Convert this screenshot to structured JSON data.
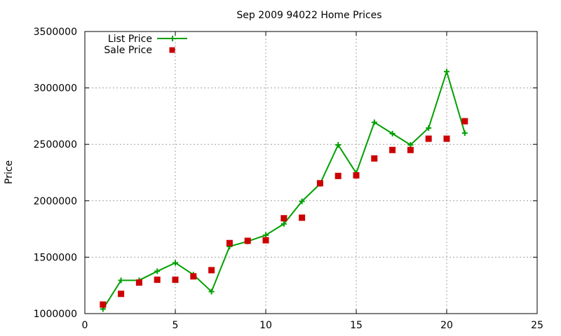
{
  "chart_data": {
    "type": "line",
    "title": "Sep 2009 94022 Home Prices",
    "xlabel": "",
    "ylabel": "Price",
    "xlim": [
      0,
      25
    ],
    "ylim": [
      1000000,
      3500000
    ],
    "xticks": [
      0,
      5,
      10,
      15,
      20,
      25
    ],
    "yticks": [
      1000000,
      1500000,
      2000000,
      2500000,
      3000000,
      3500000
    ],
    "xtick_labels": [
      "0",
      "5",
      "10",
      "15",
      "20",
      "25"
    ],
    "ytick_labels": [
      "1000000",
      "1500000",
      "2000000",
      "2500000",
      "3000000",
      "3500000"
    ],
    "grid": true,
    "legend_position": "top-left",
    "series": [
      {
        "name": "List Price",
        "style": "line-with-plus-markers",
        "color": "#00a000",
        "x": [
          1,
          2,
          3,
          4,
          5,
          6,
          7,
          8,
          9,
          10,
          11,
          12,
          13,
          14,
          15,
          16,
          17,
          18,
          19,
          20,
          21
        ],
        "values": [
          1040000,
          1295000,
          1295000,
          1375000,
          1450000,
          1345000,
          1195000,
          1595000,
          1640000,
          1695000,
          1795000,
          1995000,
          2150000,
          2495000,
          2245000,
          2695000,
          2595000,
          2495000,
          2645000,
          3145000,
          2600000
        ]
      },
      {
        "name": "Sale Price",
        "style": "square-markers",
        "color": "#cc0000",
        "x": [
          1,
          2,
          3,
          4,
          5,
          6,
          7,
          8,
          9,
          10,
          11,
          12,
          13,
          14,
          15,
          16,
          17,
          18,
          19,
          20,
          21
        ],
        "values": [
          1080000,
          1175000,
          1275000,
          1300000,
          1300000,
          1330000,
          1385000,
          1625000,
          1645000,
          1650000,
          1845000,
          1850000,
          2155000,
          2220000,
          2225000,
          2375000,
          2450000,
          2450000,
          2550000,
          2550000,
          2705000
        ]
      }
    ]
  }
}
